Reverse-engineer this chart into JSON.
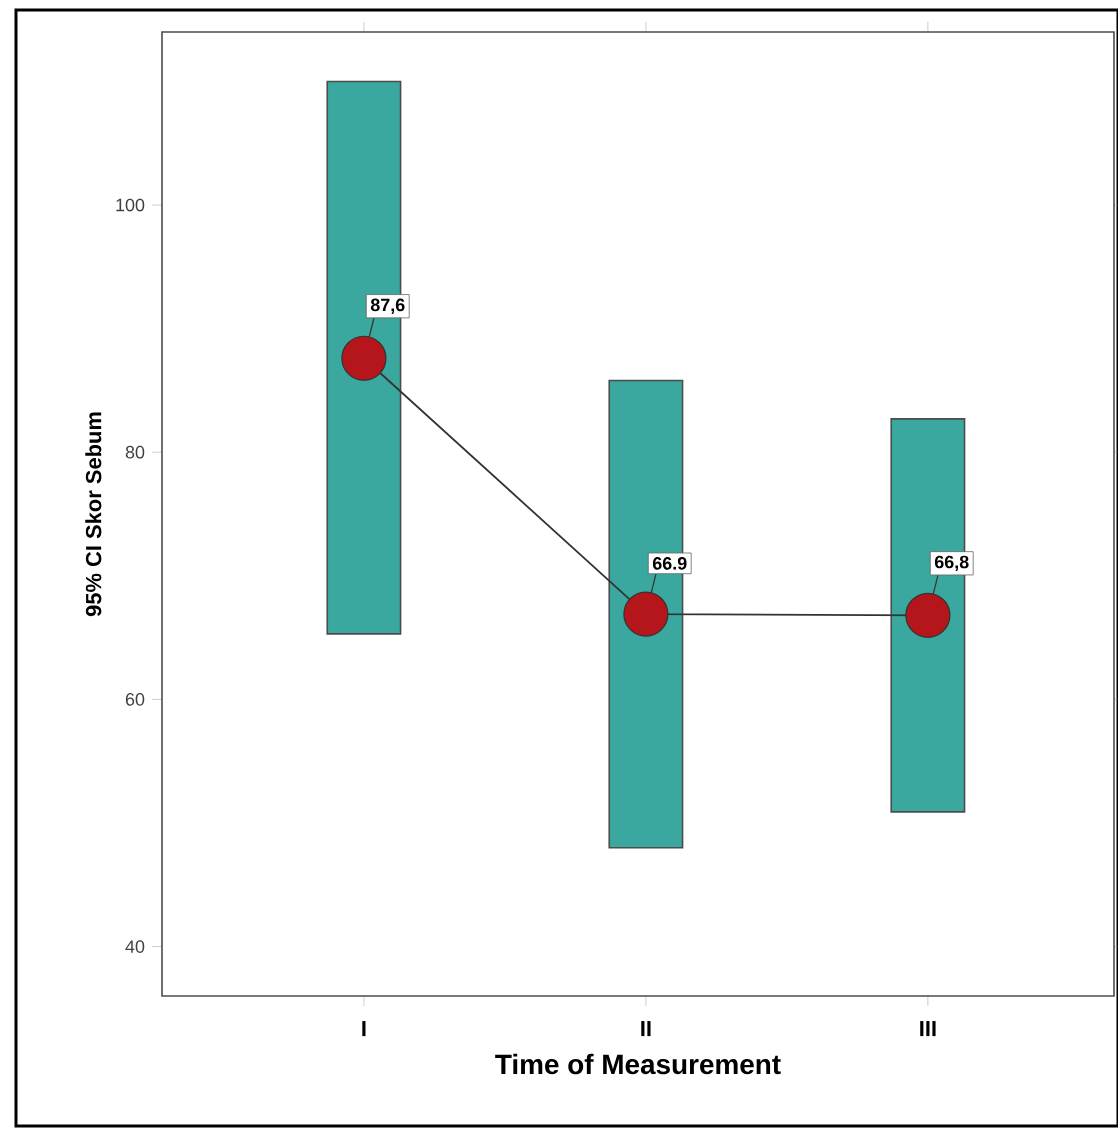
{
  "chart_data": {
    "type": "bar",
    "xlabel": "Time of Measurement",
    "ylabel": "95% CI Skor Sebum",
    "categories": [
      "I",
      "II",
      "III"
    ],
    "ylim": [
      36,
      114
    ],
    "yticks": [
      40,
      60,
      80,
      100
    ],
    "series": [
      {
        "color": "#3aa89e",
        "base": [
          65.3,
          48.0,
          50.9
        ],
        "values": [
          44.7,
          37.8,
          31.8
        ]
      },
      {
        "type": "line",
        "color": "#b5161b",
        "marker": "circle",
        "values": [
          87.6,
          66.9,
          66.8
        ],
        "value_labels": [
          "87,6",
          "66.9",
          "66,8"
        ]
      }
    ]
  }
}
